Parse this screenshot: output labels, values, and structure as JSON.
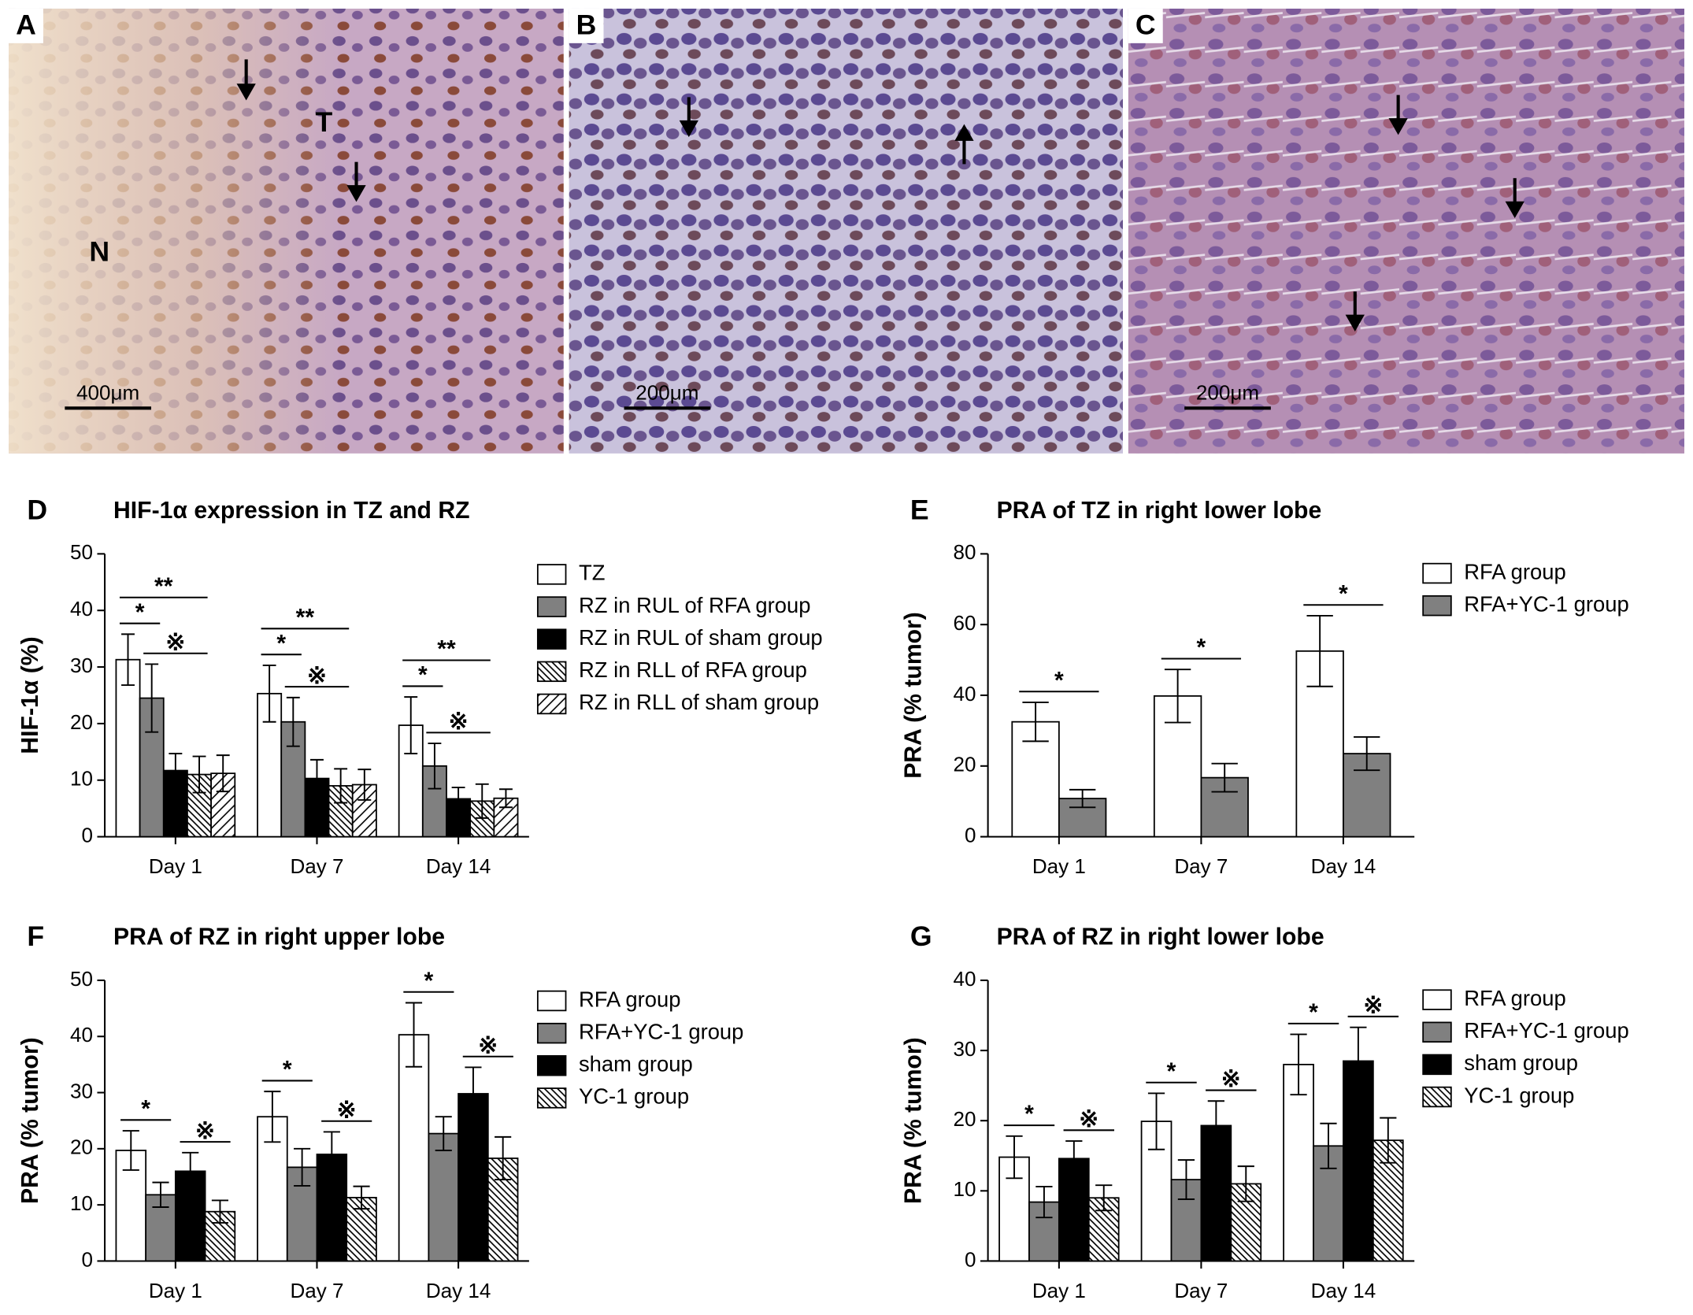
{
  "images": [
    {
      "label": "A",
      "scale_bar": "400μm",
      "annotations": [
        "T",
        "N"
      ]
    },
    {
      "label": "B",
      "scale_bar": "200μm"
    },
    {
      "label": "C",
      "scale_bar": "200μm"
    }
  ],
  "chart_data": [
    {
      "panel": "D",
      "type": "bar",
      "title": "HIF-1α expression in TZ and RZ",
      "ylabel": "HIF-1α (%)",
      "categories": [
        "Day 1",
        "Day 7",
        "Day 14"
      ],
      "series": [
        {
          "name": "TZ",
          "color": "#ffffff",
          "values": [
            31.3,
            25.3,
            19.7
          ],
          "errors": [
            4.5,
            5,
            5
          ]
        },
        {
          "name": "RZ in RUL of RFA group",
          "color": "#808080",
          "values": [
            24.5,
            20.3,
            12.5
          ],
          "errors": [
            6,
            4.3,
            4
          ]
        },
        {
          "name": "RZ in RUL of sham group",
          "color": "#000000",
          "values": [
            11.7,
            10.3,
            6.7
          ],
          "errors": [
            3,
            3.3,
            2
          ]
        },
        {
          "name": "RZ in RLL of RFA group",
          "color": "#ffffff",
          "pattern": "backslash",
          "values": [
            11,
            9,
            6.3
          ],
          "errors": [
            3.2,
            3,
            3
          ]
        },
        {
          "name": "RZ in RLL of sham group",
          "color": "#ffffff",
          "pattern": "slash",
          "values": [
            11.2,
            9.2,
            6.8
          ],
          "errors": [
            3.2,
            2.7,
            1.6
          ]
        }
      ],
      "ylim": [
        0,
        50
      ],
      "yticks": [
        0,
        10,
        20,
        30,
        40,
        50
      ],
      "annotations": [
        {
          "text": "*",
          "category": 0,
          "span": [
            0,
            1
          ]
        },
        {
          "text": "※",
          "category": 0,
          "span": [
            1,
            3
          ]
        },
        {
          "text": "**",
          "category": 0,
          "span": [
            0,
            3
          ]
        },
        {
          "text": "*",
          "category": 1,
          "span": [
            0,
            1
          ]
        },
        {
          "text": "※",
          "category": 1,
          "span": [
            1,
            3
          ]
        },
        {
          "text": "**",
          "category": 1,
          "span": [
            0,
            3
          ]
        },
        {
          "text": "*",
          "category": 2,
          "span": [
            0,
            1
          ]
        },
        {
          "text": "※",
          "category": 2,
          "span": [
            1,
            3
          ]
        },
        {
          "text": "**",
          "category": 2,
          "span": [
            0,
            3
          ]
        }
      ]
    },
    {
      "panel": "E",
      "type": "bar",
      "title": "PRA of TZ in right lower lobe",
      "ylabel": "PRA (% tumor)",
      "categories": [
        "Day 1",
        "Day 7",
        "Day 14"
      ],
      "series": [
        {
          "name": "RFA group",
          "color": "#ffffff",
          "values": [
            32.5,
            39.8,
            52.5
          ],
          "errors": [
            5.5,
            7.5,
            10
          ]
        },
        {
          "name": "RFA+YC-1 group",
          "color": "#808080",
          "values": [
            10.8,
            16.7,
            23.5
          ],
          "errors": [
            2.5,
            4,
            4.7
          ]
        }
      ],
      "ylim": [
        0,
        80
      ],
      "yticks": [
        0,
        20,
        40,
        60,
        80
      ],
      "annotations": [
        {
          "text": "*",
          "category": 0,
          "span": [
            0,
            1
          ]
        },
        {
          "text": "*",
          "category": 1,
          "span": [
            0,
            1
          ]
        },
        {
          "text": "*",
          "category": 2,
          "span": [
            0,
            1
          ]
        }
      ]
    },
    {
      "panel": "F",
      "type": "bar",
      "title": "PRA of RZ in right upper lobe",
      "ylabel": "PRA (% tumor)",
      "categories": [
        "Day 1",
        "Day 7",
        "Day 14"
      ],
      "series": [
        {
          "name": "RFA group",
          "color": "#ffffff",
          "values": [
            19.7,
            25.7,
            40.3
          ],
          "errors": [
            3.5,
            4.5,
            5.7
          ]
        },
        {
          "name": "RFA+YC-1 group",
          "color": "#808080",
          "values": [
            11.8,
            16.7,
            22.7
          ],
          "errors": [
            2.2,
            3.3,
            3
          ]
        },
        {
          "name": "sham group",
          "color": "#000000",
          "values": [
            16,
            19,
            29.8
          ],
          "errors": [
            3.3,
            4,
            4.7
          ]
        },
        {
          "name": "YC-1 group",
          "color": "#ffffff",
          "pattern": "backslash",
          "values": [
            8.8,
            11.3,
            18.3
          ],
          "errors": [
            2,
            2,
            3.8
          ]
        }
      ],
      "ylim": [
        0,
        50
      ],
      "yticks": [
        0,
        10,
        20,
        30,
        40,
        50
      ],
      "annotations": [
        {
          "text": "*",
          "category": 0,
          "span": [
            0,
            1
          ]
        },
        {
          "text": "※",
          "category": 0,
          "span": [
            2,
            3
          ]
        },
        {
          "text": "*",
          "category": 1,
          "span": [
            0,
            1
          ]
        },
        {
          "text": "※",
          "category": 1,
          "span": [
            2,
            3
          ]
        },
        {
          "text": "*",
          "category": 2,
          "span": [
            0,
            1
          ]
        },
        {
          "text": "※",
          "category": 2,
          "span": [
            2,
            3
          ]
        }
      ]
    },
    {
      "panel": "G",
      "type": "bar",
      "title": "PRA of RZ in right lower lobe",
      "ylabel": "PRA (% tumor)",
      "categories": [
        "Day 1",
        "Day 7",
        "Day 14"
      ],
      "series": [
        {
          "name": "RFA group",
          "color": "#ffffff",
          "values": [
            14.8,
            19.9,
            28
          ],
          "errors": [
            3,
            4,
            4.3
          ]
        },
        {
          "name": "RFA+YC-1 group",
          "color": "#808080",
          "values": [
            8.4,
            11.6,
            16.4
          ],
          "errors": [
            2.2,
            2.8,
            3.2
          ]
        },
        {
          "name": "sham group",
          "color": "#000000",
          "values": [
            14.6,
            19.3,
            28.5
          ],
          "errors": [
            2.5,
            3.5,
            4.8
          ]
        },
        {
          "name": "YC-1 group",
          "color": "#ffffff",
          "pattern": "backslash",
          "values": [
            9,
            11,
            17.2
          ],
          "errors": [
            1.8,
            2.5,
            3.2
          ]
        }
      ],
      "ylim": [
        0,
        40
      ],
      "yticks": [
        0,
        10,
        20,
        30,
        40
      ],
      "annotations": [
        {
          "text": "*",
          "category": 0,
          "span": [
            0,
            1
          ]
        },
        {
          "text": "※",
          "category": 0,
          "span": [
            2,
            3
          ]
        },
        {
          "text": "*",
          "category": 1,
          "span": [
            0,
            1
          ]
        },
        {
          "text": "※",
          "category": 1,
          "span": [
            2,
            3
          ]
        },
        {
          "text": "*",
          "category": 2,
          "span": [
            0,
            1
          ]
        },
        {
          "text": "※",
          "category": 2,
          "span": [
            2,
            3
          ]
        }
      ]
    }
  ]
}
